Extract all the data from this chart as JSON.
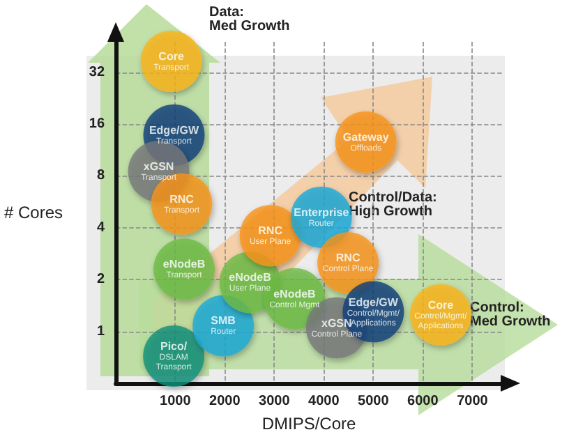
{
  "chart_data": {
    "type": "bubble",
    "xlabel": "DMIPS/Core",
    "ylabel": "# Cores",
    "annotations": [
      "Data:\nMed Growth",
      "Control/Data:\nHigh Growth",
      "Control:\nMed Growth"
    ],
    "x": [
      920,
      975,
      667,
      1130,
      1180,
      970,
      1970,
      2510,
      2920,
      3410,
      3950,
      4260,
      4490,
      4850,
      5000,
      6360
    ],
    "values": [
      37,
      13.8,
      8.5,
      5.5,
      2.3,
      0.72,
      1.08,
      1.93,
      3.6,
      1.55,
      4.6,
      1.05,
      2.5,
      12.6,
      1.3,
      1.25
    ],
    "sizes": [
      1,
      1,
      1,
      1,
      1,
      1,
      1,
      1,
      1,
      1,
      1,
      1,
      1,
      1,
      1,
      1
    ],
    "colors": [
      "#fbb416",
      "#0d3f7a",
      "#77787b",
      "#f7941d",
      "#6dbb45",
      "#0f8f7a",
      "#1ba9d8",
      "#6dbb45",
      "#f7941d",
      "#6dbb45",
      "#1ba9d8",
      "#77787b",
      "#f7941d",
      "#f7941d",
      "#0d3f7a",
      "#fbb416"
    ],
    "value_labels": [
      "Core\nTransport",
      "Edge/GW\nTransport",
      "xGSN\nTransport",
      "RNC\nTransport",
      "eNodeB\nTransport",
      "Pico/\nDSLAM\nTransport",
      "SMB\nRouter",
      "eNodeB\nUser Plane",
      "RNC\nUser Plane",
      "eNodeB\nControl Mgmt",
      "Enterprise\nRouter",
      "xGSN\nControl Plane",
      "RNC\nControl Plane",
      "Gateway\nOffloads",
      "Edge/GW\nControl/Mgmt/\nApplications",
      "Core\nControl/Mgmt/\nApplications"
    ],
    "xlim": [
      -200,
      7600
    ],
    "ylim": [
      0.5,
      48
    ],
    "xticks": [
      1000,
      2000,
      3000,
      4000,
      5000,
      6000,
      7000
    ],
    "yticks": [
      1,
      2,
      4,
      8,
      16,
      32
    ],
    "log": "y",
    "grid": true,
    "marker": "circle"
  }
}
